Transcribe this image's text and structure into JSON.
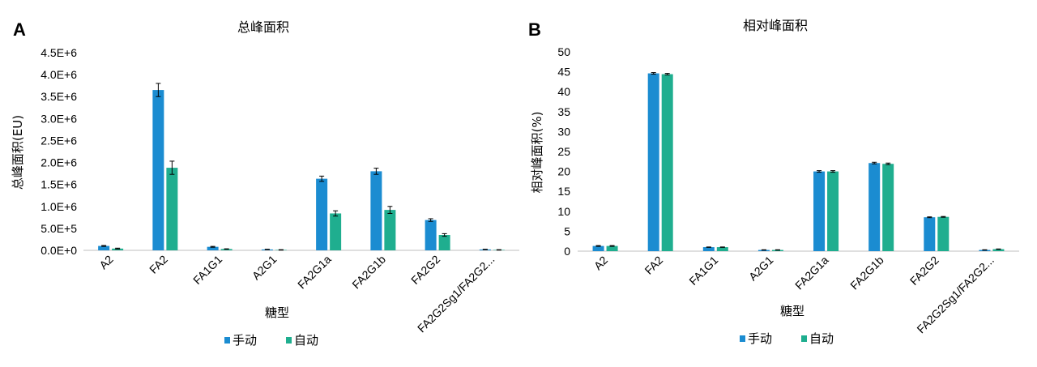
{
  "colors": {
    "manual": "#1b8cd1",
    "auto": "#1fae8f",
    "axis": "#bfbfbf",
    "errorbar": "#000000"
  },
  "chart_data": [
    {
      "panel": "A",
      "type": "bar",
      "title": "总峰面积",
      "xlabel": "糖型",
      "ylabel": "总峰面积(EU)",
      "ylim": [
        0,
        4500000
      ],
      "yticks": [
        "0.0E+0",
        "5.0E+5",
        "1.0E+6",
        "1.5E+6",
        "2.0E+6",
        "2.5E+6",
        "3.0E+6",
        "3.5E+6",
        "4.0E+6",
        "4.5E+6"
      ],
      "ytick_values": [
        0,
        500000,
        1000000,
        1500000,
        2000000,
        2500000,
        3000000,
        3500000,
        4000000,
        4500000
      ],
      "categories": [
        "A2",
        "FA2",
        "FA1G1",
        "A2G1",
        "FA2G1a",
        "FA2G1b",
        "FA2G2",
        "FA2G2Sg1/FA2G2..."
      ],
      "series": [
        {
          "name": "手动",
          "values": [
            100000,
            3650000,
            80000,
            20000,
            1630000,
            1800000,
            690000,
            20000
          ],
          "errors": [
            10000,
            150000,
            10000,
            5000,
            60000,
            70000,
            30000,
            5000
          ]
        },
        {
          "name": "自动",
          "values": [
            40000,
            1880000,
            30000,
            10000,
            840000,
            920000,
            350000,
            10000
          ],
          "errors": [
            10000,
            150000,
            5000,
            5000,
            60000,
            80000,
            30000,
            5000
          ]
        }
      ],
      "legend": "bottom"
    },
    {
      "panel": "B",
      "type": "bar",
      "title": "相对峰面积",
      "xlabel": "糖型",
      "ylabel": "相对峰面积(%)",
      "ylim": [
        0,
        50
      ],
      "yticks": [
        "0",
        "5",
        "10",
        "15",
        "20",
        "25",
        "30",
        "35",
        "40",
        "45",
        "50"
      ],
      "ytick_values": [
        0,
        5,
        10,
        15,
        20,
        25,
        30,
        35,
        40,
        45,
        50
      ],
      "categories": [
        "A2",
        "FA2",
        "FA1G1",
        "A2G1",
        "FA2G1a",
        "FA2G1b",
        "FA2G2",
        "FA2G2Sg1/FA2G2..."
      ],
      "series": [
        {
          "name": "手动",
          "values": [
            1.3,
            44.6,
            1.0,
            0.3,
            20.0,
            22.1,
            8.5,
            0.3
          ],
          "errors": [
            0.1,
            0.2,
            0.05,
            0.05,
            0.2,
            0.2,
            0.1,
            0.05
          ]
        },
        {
          "name": "自动",
          "values": [
            1.3,
            44.4,
            1.0,
            0.3,
            20.0,
            21.9,
            8.6,
            0.5
          ],
          "errors": [
            0.1,
            0.2,
            0.05,
            0.05,
            0.2,
            0.2,
            0.1,
            0.05
          ]
        }
      ],
      "legend": "bottom"
    }
  ]
}
